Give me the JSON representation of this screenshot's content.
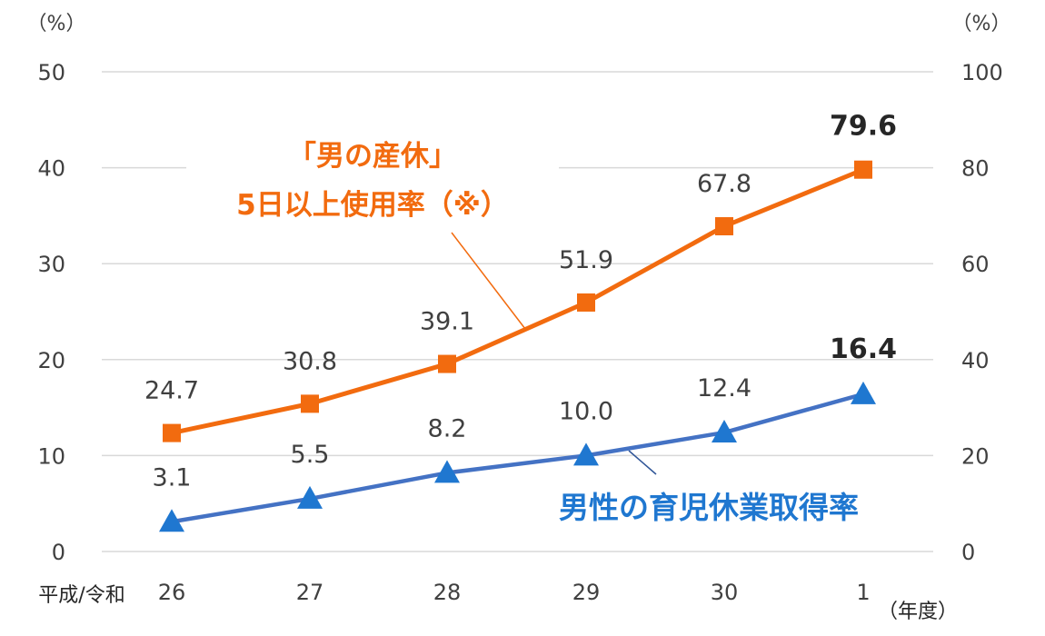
{
  "chart_data": {
    "type": "line",
    "categories": [
      "26",
      "27",
      "28",
      "29",
      "30",
      "1"
    ],
    "x_prefix": "平成/令和",
    "x_unit": "（年度）",
    "y_left": {
      "unit": "（%）",
      "ticks": [
        "0",
        "10",
        "20",
        "30",
        "40",
        "50"
      ],
      "range": [
        0,
        50
      ]
    },
    "y_right": {
      "unit": "（%）",
      "ticks": [
        "0",
        "20",
        "40",
        "60",
        "80",
        "100"
      ],
      "range": [
        0,
        100
      ]
    },
    "grid": true,
    "series": [
      {
        "name_lines": [
          "「男の産休」",
          "5日以上使用率（※）"
        ],
        "axis": "right",
        "color": "#f26b0f",
        "marker": "square",
        "values": [
          24.7,
          30.8,
          39.1,
          51.9,
          67.8,
          79.6
        ],
        "labels": [
          "24.7",
          "30.8",
          "39.1",
          "51.9",
          "67.8",
          "79.6"
        ]
      },
      {
        "name": "男性の育児休業取得率",
        "axis": "left",
        "color": "#4472c4",
        "label_color": "#1f77d0",
        "marker": "triangle",
        "values": [
          3.1,
          5.5,
          8.2,
          10.0,
          12.4,
          16.4
        ],
        "labels": [
          "3.1",
          "5.5",
          "8.2",
          "10.0",
          "12.4",
          "16.4"
        ]
      }
    ]
  }
}
